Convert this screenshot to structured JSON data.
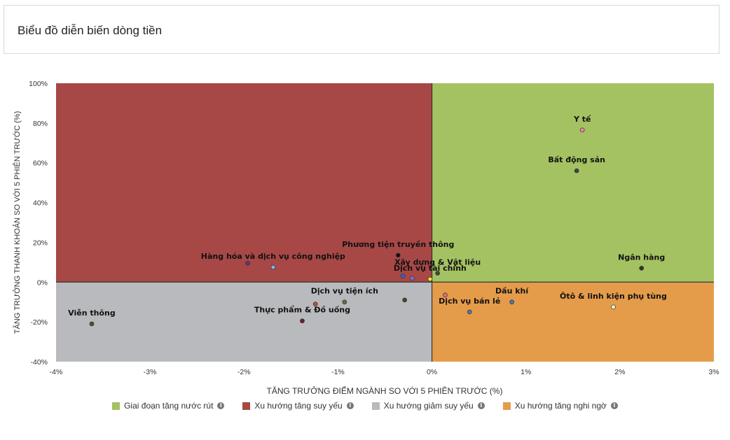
{
  "header": {
    "title": "Biểu đồ diễn biến dòng tiền"
  },
  "chart_data": {
    "type": "scatter",
    "xlabel": "TĂNG TRƯỞNG ĐIỂM NGÀNH SO VỚI 5 PHIÊN TRƯỚC (%)",
    "ylabel": "TĂNG TRƯỞNG THANH KHOẢN SO VỚI 5 PHIÊN TRƯỚC (%)",
    "xlim": [
      -4,
      3
    ],
    "ylim": [
      -40,
      100
    ],
    "x_ticks": [
      "-4%",
      "-3%",
      "-2%",
      "-1%",
      "0%",
      "1%",
      "2%",
      "3%"
    ],
    "y_ticks": [
      "100%",
      "80%",
      "60%",
      "40%",
      "20%",
      "0%",
      "-20%",
      "-40%"
    ],
    "quadrants": [
      {
        "name": "Giai đoạn tăng nước rút",
        "color": "#a5c262"
      },
      {
        "name": "Xu hướng tăng suy yếu",
        "color": "#a84846"
      },
      {
        "name": "Xu hướng giảm suy yếu",
        "color": "#b9babd"
      },
      {
        "name": "Xu hướng tăng nghi ngờ",
        "color": "#e59c4a"
      }
    ],
    "points": [
      {
        "label": "Y tế",
        "x": 1.6,
        "y": 76.5,
        "color": "#e38aa0"
      },
      {
        "label": "Bất động sản",
        "x": 1.54,
        "y": 56,
        "color": "#444444"
      },
      {
        "label": "Ngân hàng",
        "x": 2.23,
        "y": 7,
        "color": "#333333"
      },
      {
        "label": "Ôtô & linh kiện phụ tùng",
        "x": 1.93,
        "y": -12.5,
        "color": "#f2f2c8"
      },
      {
        "label": "Dầu khí",
        "x": 0.85,
        "y": -10,
        "color": "#4a78b4"
      },
      {
        "label": "Dịch vụ bán lẻ",
        "x": 0.4,
        "y": -15,
        "color": "#4a78b4"
      },
      {
        "label": "Dịch vụ tài chính",
        "x": -0.02,
        "y": 1.5,
        "color": "#f5e52a"
      },
      {
        "label": "Xây dựng & Vật liệu",
        "x": 0.06,
        "y": 4.5,
        "color": "#444444"
      },
      {
        "label": "Phương tiện truyền thông",
        "x": -0.36,
        "y": 13.5,
        "color": "#111111"
      },
      {
        "label": "Hàng hóa và dịch vụ công nghiệp",
        "x": -1.69,
        "y": 7.5,
        "color": "#7ab6e6"
      },
      {
        "label": "Dịch vụ tiện ích",
        "x": -0.93,
        "y": -10,
        "color": "#6b6b4a"
      },
      {
        "label": "Thực phẩm & Đồ uống",
        "x": -1.38,
        "y": -19.5,
        "color": "#6e1e2a"
      },
      {
        "label": "Viễn thông",
        "x": -3.62,
        "y": -21,
        "color": "#3f5a26"
      },
      {
        "label": "",
        "x": -1.96,
        "y": 9.5,
        "color": "#5a3a7a"
      },
      {
        "label": "",
        "x": -0.29,
        "y": -9,
        "color": "#3a4a2a"
      },
      {
        "label": "",
        "x": -0.31,
        "y": 3,
        "color": "#3a5fd0"
      },
      {
        "label": "",
        "x": -0.21,
        "y": 2,
        "color": "#8a6ad0"
      },
      {
        "label": "",
        "x": -1.24,
        "y": -11,
        "color": "#c24a3a"
      },
      {
        "label": "",
        "x": 0.14,
        "y": -6.5,
        "color": "#e06a8a"
      }
    ]
  }
}
